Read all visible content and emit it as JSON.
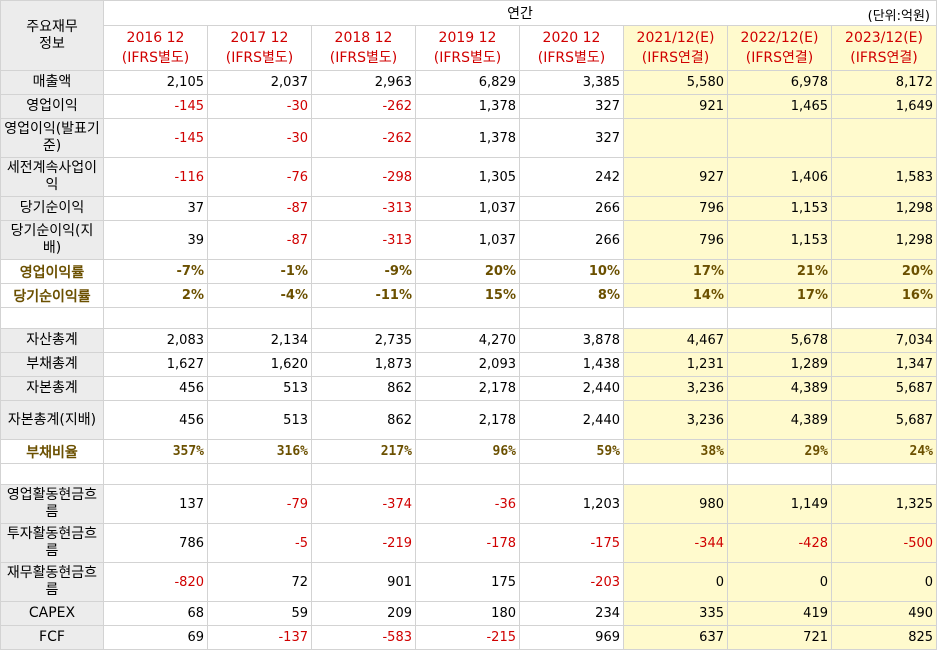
{
  "header": {
    "corner_label": "주요재무\n정보",
    "period_label": "연간",
    "unit_label": "(단위:억원)",
    "years": [
      {
        "year": "2016 12",
        "basis": "(IFRS별도)"
      },
      {
        "year": "2017 12",
        "basis": "(IFRS별도)"
      },
      {
        "year": "2018 12",
        "basis": "(IFRS별도)"
      },
      {
        "year": "2019 12",
        "basis": "(IFRS별도)"
      },
      {
        "year": "2020 12",
        "basis": "(IFRS별도)"
      },
      {
        "year": "2021/12(E)",
        "basis": "(IFRS연결)"
      },
      {
        "year": "2022/12(E)",
        "basis": "(IFRS연결)"
      },
      {
        "year": "2023/12(E)",
        "basis": "(IFRS연결)"
      }
    ]
  },
  "colors": {
    "negative": "#d00000",
    "estimate_bg": "#fffacd",
    "ratio_text": "#6b5000",
    "label_bg": "#ececec"
  },
  "rows": [
    {
      "label": "매출액",
      "values": [
        "2,105",
        "2,037",
        "2,963",
        "6,829",
        "3,385",
        "5,580",
        "6,978",
        "8,172"
      ]
    },
    {
      "label": "영업이익",
      "values": [
        "-145",
        "-30",
        "-262",
        "1,378",
        "327",
        "921",
        "1,465",
        "1,649"
      ]
    },
    {
      "label": "영업이익(발표기준)",
      "values": [
        "-145",
        "-30",
        "-262",
        "1,378",
        "327",
        "",
        "",
        ""
      ]
    },
    {
      "label": "세전계속사업이익",
      "values": [
        "-116",
        "-76",
        "-298",
        "1,305",
        "242",
        "927",
        "1,406",
        "1,583"
      ]
    },
    {
      "label": "당기순이익",
      "values": [
        "37",
        "-87",
        "-313",
        "1,037",
        "266",
        "796",
        "1,153",
        "1,298"
      ]
    },
    {
      "label": "당기순이익(지배)",
      "values": [
        "39",
        "-87",
        "-313",
        "1,037",
        "266",
        "796",
        "1,153",
        "1,298"
      ]
    },
    {
      "label": "영업이익률",
      "values": [
        "-7%",
        "-1%",
        "-9%",
        "20%",
        "10%",
        "17%",
        "21%",
        "20%"
      ]
    },
    {
      "label": "당기순이익률",
      "values": [
        "2%",
        "-4%",
        "-11%",
        "15%",
        "8%",
        "14%",
        "17%",
        "16%"
      ]
    },
    {
      "label": "자산총계",
      "values": [
        "2,083",
        "2,134",
        "2,735",
        "4,270",
        "3,878",
        "4,467",
        "5,678",
        "7,034"
      ]
    },
    {
      "label": "부채총계",
      "values": [
        "1,627",
        "1,620",
        "1,873",
        "2,093",
        "1,438",
        "1,231",
        "1,289",
        "1,347"
      ]
    },
    {
      "label": "자본총계",
      "values": [
        "456",
        "513",
        "862",
        "2,178",
        "2,440",
        "3,236",
        "4,389",
        "5,687"
      ]
    },
    {
      "label": "자본총계(지배)",
      "values": [
        "456",
        "513",
        "862",
        "2,178",
        "2,440",
        "3,236",
        "4,389",
        "5,687"
      ]
    },
    {
      "label": "부채비율",
      "values": [
        "357%",
        "316%",
        "217%",
        "96%",
        "59%",
        "38%",
        "29%",
        "24%"
      ]
    },
    {
      "label": "영업활동현금흐름",
      "values": [
        "137",
        "-79",
        "-374",
        "-36",
        "1,203",
        "980",
        "1,149",
        "1,325"
      ]
    },
    {
      "label": "투자활동현금흐름",
      "values": [
        "786",
        "-5",
        "-219",
        "-178",
        "-175",
        "-344",
        "-428",
        "-500"
      ]
    },
    {
      "label": "재무활동현금흐름",
      "values": [
        "-820",
        "72",
        "901",
        "175",
        "-203",
        "0",
        "0",
        "0"
      ]
    },
    {
      "label": "CAPEX",
      "values": [
        "68",
        "59",
        "209",
        "180",
        "234",
        "335",
        "419",
        "490"
      ]
    },
    {
      "label": "FCF",
      "values": [
        "69",
        "-137",
        "-583",
        "-215",
        "969",
        "637",
        "721",
        "825"
      ]
    }
  ]
}
